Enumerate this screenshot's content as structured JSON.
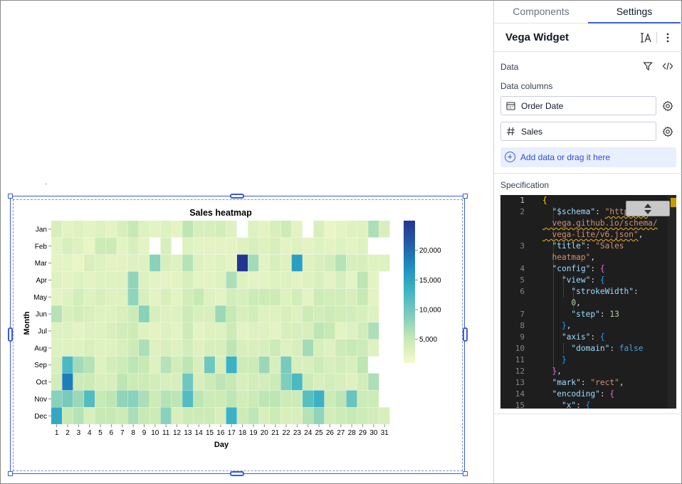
{
  "tabs": {
    "components": "Components",
    "settings": "Settings"
  },
  "widget": {
    "title": "Vega Widget"
  },
  "data_section": {
    "label": "Data",
    "columns_label": "Data columns",
    "columns": [
      {
        "name": "Order Date",
        "icon": "calendar-icon"
      },
      {
        "name": "Sales",
        "icon": "hash-icon"
      }
    ],
    "add_label": "Add data or drag it here"
  },
  "specification": {
    "label": "Specification",
    "line_numbers": [
      "1",
      "2",
      "",
      "",
      "3",
      "",
      "4",
      "5",
      "6",
      "",
      "7",
      "8",
      "9",
      "10",
      "11",
      "12",
      "13",
      "14",
      "15"
    ]
  },
  "chart_data": {
    "type": "heatmap",
    "title": "Sales heatmap",
    "xlabel": "Day",
    "ylabel": "Month",
    "x": [
      1,
      2,
      3,
      4,
      5,
      6,
      7,
      8,
      9,
      10,
      11,
      12,
      13,
      14,
      15,
      16,
      17,
      18,
      19,
      20,
      21,
      22,
      23,
      24,
      25,
      26,
      27,
      28,
      29,
      30,
      31
    ],
    "y": [
      "Jan",
      "Feb",
      "Mar",
      "Apr",
      "May",
      "Jun",
      "Jul",
      "Aug",
      "Sep",
      "Oct",
      "Nov",
      "Dec"
    ],
    "values": [
      [
        3500,
        2500,
        3000,
        2500,
        3000,
        2500,
        3500,
        5000,
        3000,
        2500,
        3000,
        2500,
        5500,
        3500,
        3500,
        4000,
        3000,
        null,
        3000,
        2500,
        3500,
        4500,
        2500,
        null,
        3500,
        2000,
        2500,
        3000,
        3000,
        6500,
        3500
      ],
      [
        2500,
        3500,
        3000,
        2000,
        4500,
        4500,
        2500,
        3500,
        2500,
        null,
        3500,
        null,
        3000,
        2500,
        2500,
        2500,
        2500,
        3000,
        3500,
        3000,
        3500,
        2500,
        3000,
        2500,
        3000,
        2500,
        3000,
        2500,
        3000,
        null,
        null
      ],
      [
        2500,
        2500,
        2000,
        3500,
        3000,
        2500,
        2500,
        3000,
        3000,
        8500,
        3500,
        3000,
        6000,
        3000,
        2500,
        3000,
        2500,
        25000,
        7000,
        2500,
        3500,
        3000,
        15500,
        3000,
        3500,
        4000,
        6000,
        3500,
        3500,
        3000,
        3000
      ],
      [
        3000,
        2500,
        3000,
        2500,
        3000,
        3000,
        3000,
        8000,
        3000,
        2500,
        2500,
        2500,
        3500,
        2500,
        2500,
        3000,
        6500,
        3000,
        2500,
        2500,
        3000,
        3000,
        2500,
        3000,
        3500,
        2500,
        3500,
        2500,
        5500,
        2500,
        null
      ],
      [
        2500,
        3000,
        4000,
        3000,
        3500,
        3000,
        3000,
        8000,
        3500,
        2500,
        3500,
        2500,
        4000,
        5000,
        3000,
        2500,
        4000,
        3500,
        4500,
        4500,
        4500,
        3000,
        4000,
        2500,
        4500,
        4000,
        4000,
        3500,
        5000,
        2500,
        null
      ],
      [
        6000,
        3500,
        4000,
        3500,
        3000,
        3000,
        3500,
        4500,
        8500,
        3500,
        3000,
        3000,
        4500,
        3500,
        3500,
        7500,
        5000,
        3500,
        4000,
        3000,
        3000,
        3500,
        3000,
        4500,
        4000,
        4500,
        4000,
        4000,
        3500,
        3000,
        null
      ],
      [
        3000,
        3000,
        2500,
        3000,
        3000,
        3500,
        4000,
        4500,
        3000,
        2500,
        3000,
        2500,
        4500,
        2500,
        3000,
        3000,
        4500,
        2500,
        3000,
        3000,
        2500,
        3500,
        3500,
        3500,
        5500,
        5000,
        2500,
        3000,
        4000,
        6500,
        null
      ],
      [
        3000,
        3000,
        3000,
        3500,
        3000,
        3000,
        3500,
        4500,
        6500,
        3000,
        3500,
        3000,
        4000,
        3000,
        3500,
        3500,
        5500,
        3500,
        3500,
        3500,
        4500,
        3000,
        3500,
        7000,
        3500,
        3000,
        4500,
        5000,
        4500,
        3000,
        null
      ],
      [
        3500,
        12500,
        7000,
        6000,
        3000,
        4000,
        4500,
        5500,
        5000,
        3000,
        6000,
        4000,
        5500,
        3500,
        10000,
        3500,
        13500,
        4500,
        4500,
        7500,
        3500,
        9500,
        3500,
        3500,
        4500,
        3500,
        4000,
        3500,
        5500,
        null,
        null
      ],
      [
        4000,
        18500,
        4500,
        4500,
        3500,
        3500,
        5500,
        4500,
        4500,
        4000,
        3500,
        3500,
        10000,
        3500,
        4500,
        5500,
        5000,
        3500,
        4000,
        4000,
        4500,
        9000,
        12500,
        4500,
        3500,
        4000,
        3500,
        3000,
        4000,
        6500,
        null
      ],
      [
        8500,
        9500,
        7500,
        12000,
        5000,
        5500,
        8000,
        8500,
        6500,
        4500,
        6000,
        5500,
        12000,
        5500,
        4500,
        4500,
        5500,
        4000,
        4500,
        5500,
        5500,
        4500,
        4500,
        11500,
        13500,
        4500,
        5500,
        10500,
        4500,
        4500,
        null
      ],
      [
        14500,
        5000,
        6000,
        3500,
        5000,
        5000,
        4500,
        6500,
        5000,
        4500,
        8500,
        3500,
        4500,
        4500,
        4500,
        3500,
        13500,
        4500,
        5500,
        3500,
        4500,
        3500,
        3500,
        6000,
        8000,
        4000,
        4500,
        5000,
        4500,
        4000,
        3500
      ]
    ],
    "legend": {
      "ticks": [
        5000,
        10000,
        15000,
        20000
      ],
      "tick_labels": [
        "5,000",
        "10,000",
        "15,000",
        "20,000"
      ],
      "min": 1000,
      "max": 25000,
      "placement": "right"
    },
    "colors": [
      "#f5f9cc",
      "#c7e9b4",
      "#7fcdbb",
      "#41b6c4",
      "#1d91c0",
      "#225ea8",
      "#253494"
    ]
  }
}
